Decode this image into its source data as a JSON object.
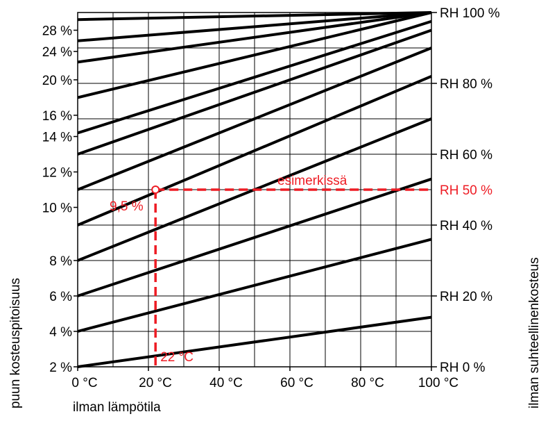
{
  "chart_data": {
    "type": "line",
    "xlabel": "ilman lämpötila",
    "ylabel_left": "puun kosteuspitoisuus",
    "ylabel_right": "ilman suhteellinenkosteus",
    "x_ticks": [
      "0 °C",
      "20 °C",
      "40 °C",
      "60 °C",
      "80 °C",
      "100 °C"
    ],
    "xlim": [
      0,
      100
    ],
    "left_ticks": [
      {
        "label": "2 %",
        "row": 0
      },
      {
        "label": "4 %",
        "row": 1
      },
      {
        "label": "6 %",
        "row": 2
      },
      {
        "label": "8 %",
        "row": 3
      },
      {
        "label": "10 %",
        "row": 4.5
      },
      {
        "label": "12 %",
        "row": 5.5
      },
      {
        "label": "14 %",
        "row": 6.5
      },
      {
        "label": "16 %",
        "row": 7.1
      },
      {
        "label": "20 %",
        "row": 8.1
      },
      {
        "label": "24 %",
        "row": 8.9
      },
      {
        "label": "28 %",
        "row": 9.5
      }
    ],
    "right_ticks": [
      {
        "label": "RH 0 %",
        "row": 0
      },
      {
        "label": "RH 20 %",
        "row": 2
      },
      {
        "label": "RH 40 %",
        "row": 4
      },
      {
        "label": "RH 60 %",
        "row": 6
      },
      {
        "label": "RH 80 %",
        "row": 8
      },
      {
        "label": "RH 100 %",
        "row": 10
      }
    ],
    "grid": true,
    "series": [
      {
        "values": [
          [
            0,
            0
          ],
          [
            100,
            1.4
          ]
        ]
      },
      {
        "values": [
          [
            0,
            1
          ],
          [
            100,
            3.6
          ]
        ]
      },
      {
        "values": [
          [
            0,
            2
          ],
          [
            100,
            5.3
          ]
        ]
      },
      {
        "values": [
          [
            0,
            3
          ],
          [
            100,
            7.0
          ]
        ]
      },
      {
        "values": [
          [
            0,
            4
          ],
          [
            100,
            8.2
          ]
        ]
      },
      {
        "values": [
          [
            0,
            5
          ],
          [
            100,
            9.0
          ]
        ]
      },
      {
        "values": [
          [
            0,
            6
          ],
          [
            100,
            9.5
          ]
        ]
      },
      {
        "values": [
          [
            0,
            6.6
          ],
          [
            100,
            9.75
          ]
        ]
      },
      {
        "values": [
          [
            0,
            7.6
          ],
          [
            100,
            10
          ]
        ]
      },
      {
        "values": [
          [
            0,
            8.6
          ],
          [
            100,
            10
          ]
        ]
      },
      {
        "values": [
          [
            0,
            9.2
          ],
          [
            100,
            10
          ]
        ]
      },
      {
        "values": [
          [
            0,
            9.8
          ],
          [
            100,
            10
          ]
        ]
      }
    ],
    "example": {
      "label_top": "esimerkissä",
      "label_point": "9,5 %",
      "label_temp": "22 °C",
      "label_rh": "RH 50 %",
      "temp": 22,
      "row": 5,
      "color": "#ee1c24"
    }
  }
}
